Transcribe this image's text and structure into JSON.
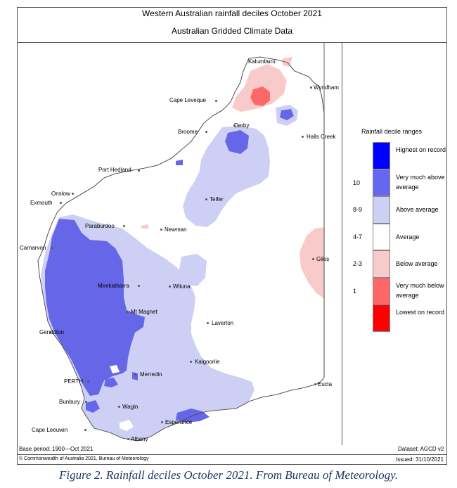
{
  "header": {
    "title_line1": "Western Australian rainfall deciles     October 2021",
    "title_line2": "Australian Gridded Climate Data"
  },
  "legend": {
    "title": "Rainfall decile ranges",
    "items": [
      {
        "label": "Highest on record",
        "code": "",
        "color": "#0000ff"
      },
      {
        "label": "Very much above average",
        "code": "10",
        "color": "#6666f0"
      },
      {
        "label": "Above average",
        "code": "8-9",
        "color": "#cdd0f4"
      },
      {
        "label": "Average",
        "code": "4-7",
        "color": "#ffffff"
      },
      {
        "label": "Below average",
        "code": "2-3",
        "color": "#f8caca"
      },
      {
        "label": "Very much below average",
        "code": "1",
        "color": "#ff6666"
      },
      {
        "label": "Lowest on record",
        "code": "",
        "color": "#ff0000"
      }
    ]
  },
  "places": [
    {
      "name": "Kalumburu"
    },
    {
      "name": "Wyndham"
    },
    {
      "name": "Cape Leveque"
    },
    {
      "name": "Derby"
    },
    {
      "name": "Broome"
    },
    {
      "name": "Halls Creek"
    },
    {
      "name": "Port Hedland"
    },
    {
      "name": "Telfer"
    },
    {
      "name": "Onslow"
    },
    {
      "name": "Exmouth"
    },
    {
      "name": "Paraburdoo"
    },
    {
      "name": "Newman"
    },
    {
      "name": "Carnarvon"
    },
    {
      "name": "Giles"
    },
    {
      "name": "Meekatharra"
    },
    {
      "name": "Wiluna"
    },
    {
      "name": "Mt Magnet"
    },
    {
      "name": "Laverton"
    },
    {
      "name": "Geraldton"
    },
    {
      "name": "Kalgoorlie"
    },
    {
      "name": "Merredin"
    },
    {
      "name": "PERTH"
    },
    {
      "name": "Eucla"
    },
    {
      "name": "Bunbury"
    },
    {
      "name": "Wagin"
    },
    {
      "name": "Esperance"
    },
    {
      "name": "Cape Leeuwin"
    },
    {
      "name": "Albany"
    }
  ],
  "footer": {
    "base_period": "Base period: 1900—Oct 2021",
    "copyright": "© Commonwealth of Australia 2021, Bureau of Meteorology",
    "dataset": "Dataset: AGCD v2",
    "issued": "Issued: 31/10/2021"
  },
  "caption": "Figure 2. Rainfall deciles October 2021. From Bureau of Meteorology."
}
